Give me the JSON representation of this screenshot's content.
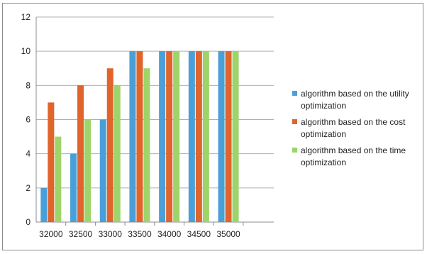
{
  "chart_data": {
    "type": "bar",
    "categories": [
      "32000",
      "32500",
      "33000",
      "33500",
      "34000",
      "34500",
      "35000"
    ],
    "series": [
      {
        "name": "algorithm based on the utility optimization",
        "values": [
          2,
          4,
          6,
          10,
          10,
          10,
          10
        ],
        "color": "#4a9fd8"
      },
      {
        "name": "algorithm based on the cost optimization",
        "values": [
          7,
          8,
          9,
          10,
          10,
          10,
          10
        ],
        "color": "#e0642c"
      },
      {
        "name": "algorithm based on the time optimization",
        "values": [
          5,
          6,
          8,
          9,
          10,
          10,
          10
        ],
        "color": "#9ed46a"
      }
    ],
    "ylim": [
      0,
      12
    ],
    "yticks": [
      "0",
      "2",
      "4",
      "6",
      "8",
      "10",
      "12"
    ],
    "grid": true,
    "legend_position": "right"
  }
}
